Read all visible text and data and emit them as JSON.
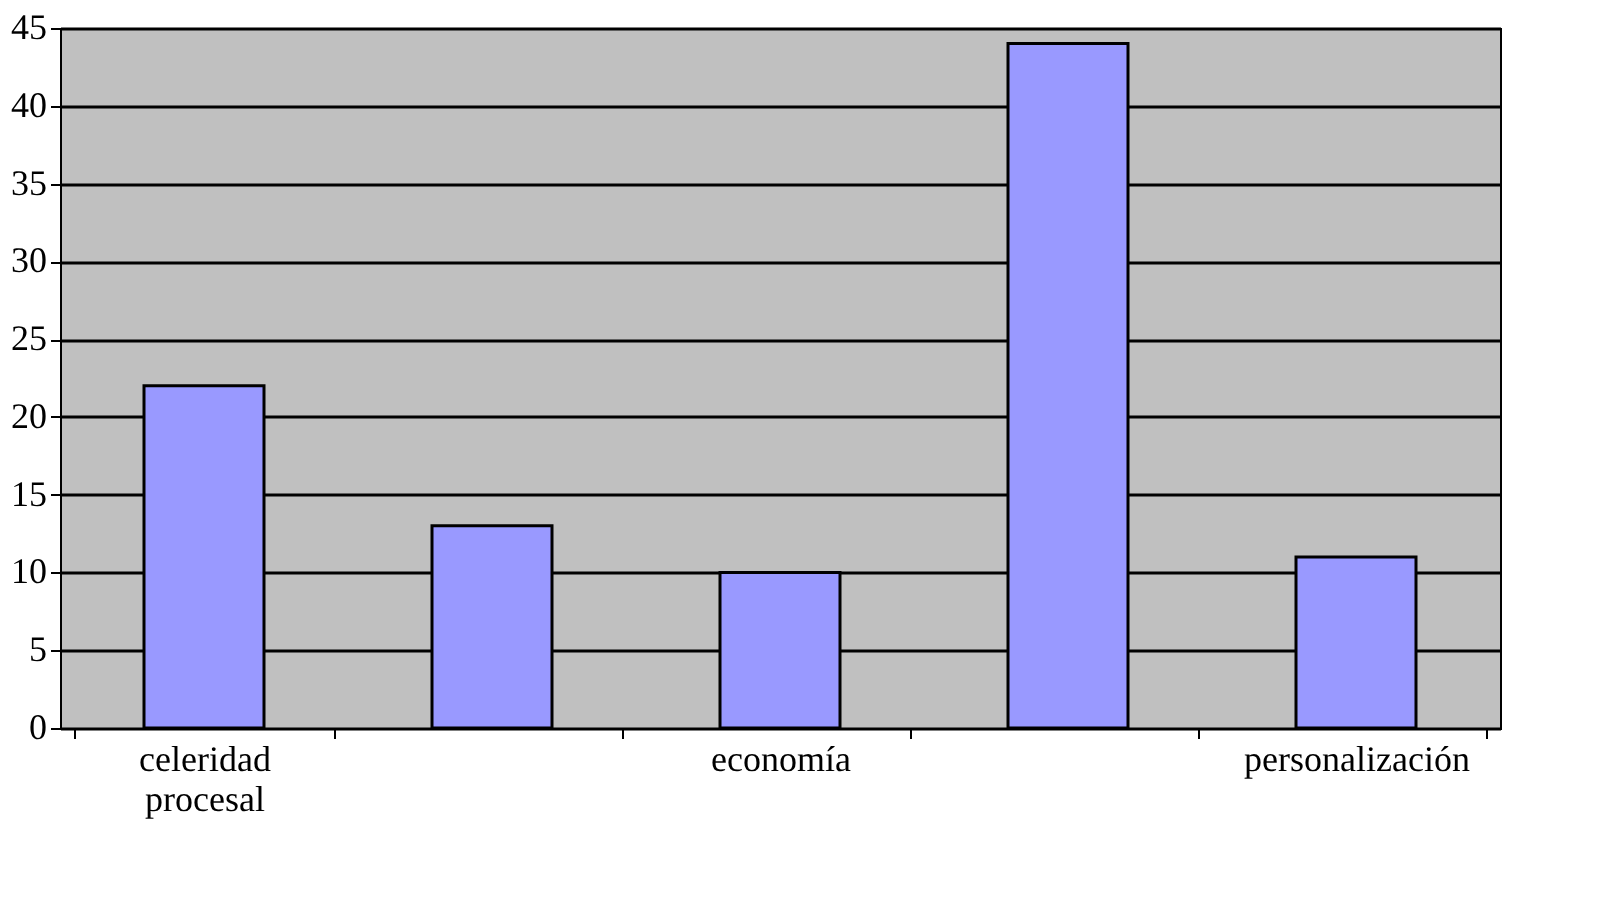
{
  "chart_data": {
    "type": "bar",
    "categories": [
      "celeridad procesal",
      null,
      "economía",
      null,
      "personalización"
    ],
    "values": [
      22,
      13,
      10,
      44,
      11
    ],
    "color": "#9999ff",
    "ylim": [
      0,
      45
    ],
    "yticks": [
      0,
      5,
      10,
      15,
      20,
      25,
      30,
      35,
      40,
      45
    ],
    "grid": "y"
  }
}
